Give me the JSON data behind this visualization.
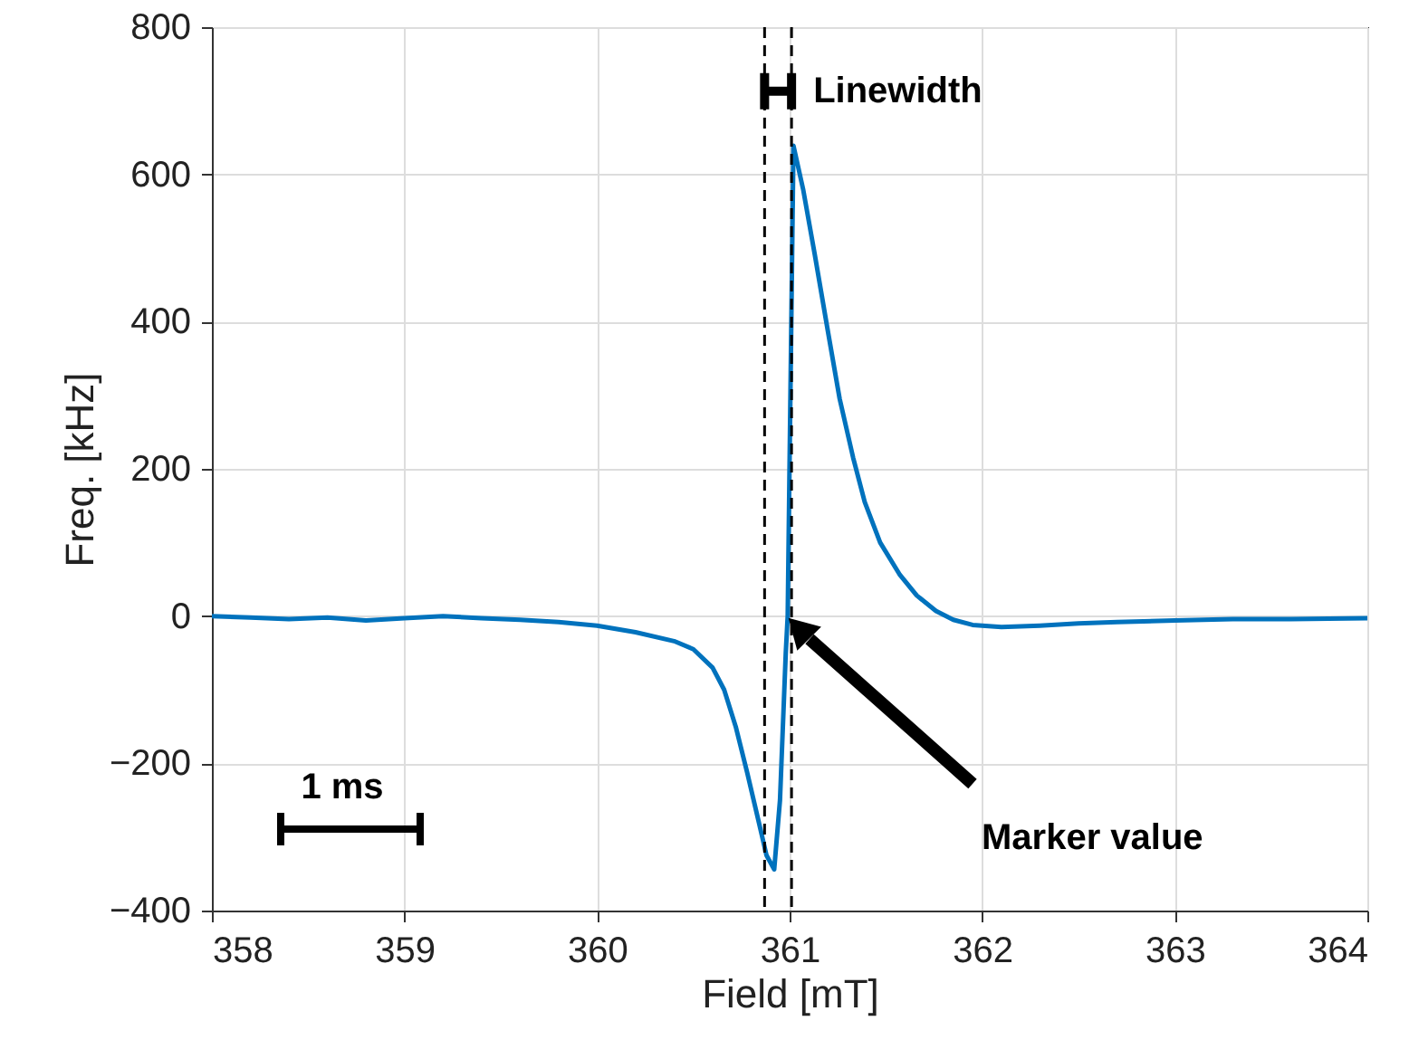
{
  "chart_data": {
    "type": "line",
    "xlabel": "Field [mT]",
    "ylabel": "Freq. [kHz]",
    "x": [
      358.0,
      358.2,
      358.4,
      358.6,
      358.8,
      359.0,
      359.2,
      359.4,
      359.6,
      359.8,
      360.0,
      360.2,
      360.4,
      360.5,
      360.6,
      360.66,
      360.72,
      360.78,
      360.84,
      360.88,
      360.92,
      360.95,
      360.98,
      360.99,
      361.02,
      361.07,
      361.13,
      361.2,
      361.26,
      361.33,
      361.39,
      361.47,
      361.57,
      361.66,
      361.76,
      361.85,
      361.95,
      362.1,
      362.3,
      362.5,
      362.7,
      363.0,
      363.3,
      363.6,
      364.0
    ],
    "series": [
      {
        "color": "#0072bd",
        "values": [
          0,
          -2,
          -4,
          -2,
          -6,
          -3,
          0,
          -3,
          -5,
          -8,
          -13,
          -22,
          -34,
          -45,
          -70,
          -100,
          -150,
          -213,
          -280,
          -325,
          -344,
          -250,
          -50,
          0,
          639,
          580,
          492,
          385,
          295,
          215,
          155,
          100,
          57,
          28,
          7,
          -5,
          -12,
          -15,
          -13,
          -10,
          -8,
          -6,
          -4,
          -4,
          -3
        ]
      }
    ],
    "xlim": [
      358,
      364
    ],
    "xticks": [
      358,
      359,
      360,
      361,
      362,
      363,
      364
    ],
    "ylim": [
      -400,
      800
    ],
    "yticks": [
      -400,
      -200,
      0,
      200,
      400,
      600,
      800
    ],
    "grid": true,
    "marker": "none",
    "line_style": "solid",
    "ref_lines": [
      {
        "axis": "x",
        "value": 360.87,
        "line_style": "dashed",
        "color": "#000000"
      },
      {
        "axis": "x",
        "value": 361.01,
        "line_style": "dashed",
        "color": "#000000"
      }
    ],
    "annotations": [
      {
        "text": "Linewidth",
        "x": 361.01,
        "y": 713
      },
      "Marker value",
      "1 ms"
    ]
  }
}
